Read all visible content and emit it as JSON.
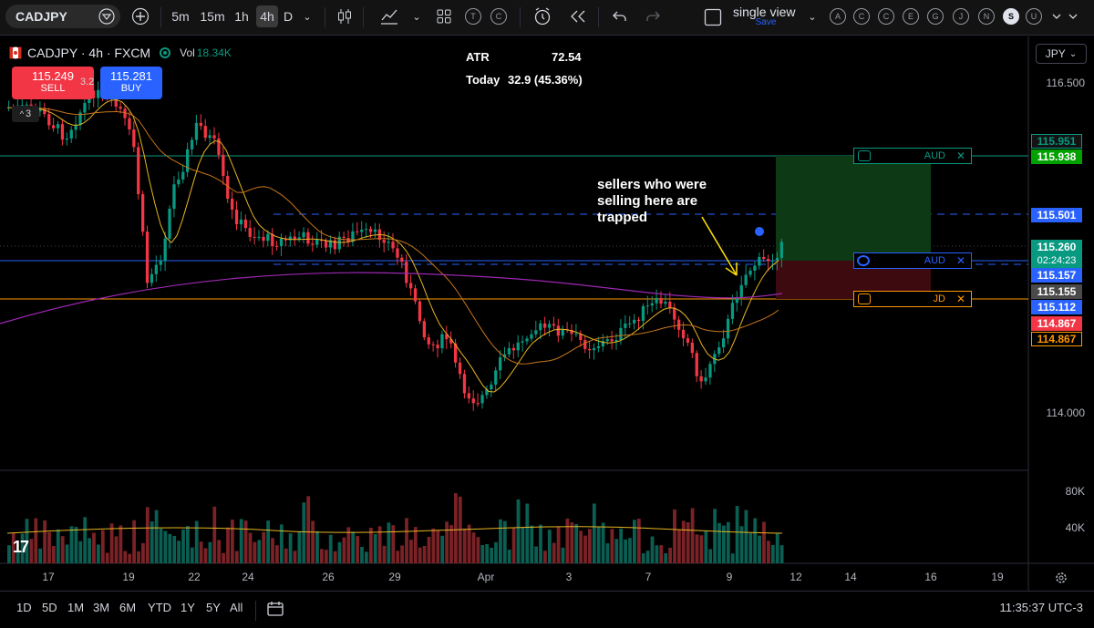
{
  "toolbar": {
    "symbol": "CADJPY",
    "intervals": [
      "5m",
      "15m",
      "1h",
      "4h",
      "D"
    ],
    "active_interval": "4h",
    "layout_name": "single view",
    "layout_save": "Save",
    "letter_buttons": [
      "T",
      "C"
    ],
    "right_circles": [
      "A",
      "C",
      "C",
      "E",
      "G",
      "J",
      "N",
      "S",
      "U"
    ]
  },
  "legend": {
    "title": "CADJPY · 4h · FXCM",
    "vol_label": "Vol",
    "vol_value": "18.34K",
    "sell_price": "115.249",
    "sell_label": "SELL",
    "spread": "3.2",
    "buy_price": "115.281",
    "buy_label": "BUY",
    "collapse_count": "3"
  },
  "atr": {
    "label": "ATR",
    "value": "72.54",
    "today_label": "Today",
    "today_value": "32.9 (45.36%)"
  },
  "annotation": "sellers who were selling here are trapped",
  "currency": "JPY",
  "price_axis": [
    "116.500",
    "114.000"
  ],
  "price_tags": [
    {
      "value": "115.951",
      "bg": "#131313",
      "fg": "#089981",
      "border": "#089981"
    },
    {
      "value": "115.938",
      "bg": "#00a000",
      "fg": "#ffffff",
      "border": "#00a000"
    },
    {
      "value": "115.501",
      "bg": "#2962ff",
      "fg": "#ffffff",
      "border": "#2962ff"
    },
    {
      "value": "115.260",
      "bg": "#089981",
      "fg": "#ffffff",
      "border": "#089981"
    },
    {
      "value": "02:24:23",
      "bg": "#089981",
      "fg": "#ffffff",
      "border": "#089981"
    },
    {
      "value": "115.157",
      "bg": "#2962ff",
      "fg": "#ffffff",
      "border": "#2962ff"
    },
    {
      "value": "115.155",
      "bg": "#4a4a4a",
      "fg": "#ffffff",
      "border": "#4a4a4a"
    },
    {
      "value": "115.112",
      "bg": "#2962ff",
      "fg": "#ffffff",
      "border": "#2962ff"
    },
    {
      "value": "114.867",
      "bg": "#f23645",
      "fg": "#ffffff",
      "border": "#f23645"
    },
    {
      "value": "114.867",
      "bg": "#000000",
      "fg": "#ff9800",
      "border": "#ff9800"
    }
  ],
  "position_bars": [
    {
      "label": "AUD",
      "color": "#089981"
    },
    {
      "label": "AUD",
      "color": "#2962ff"
    },
    {
      "label": "JD",
      "color": "#ff9800"
    }
  ],
  "volume_axis": [
    "80K",
    "40K"
  ],
  "time_axis": [
    "17",
    "19",
    "22",
    "24",
    "26",
    "29",
    "Apr",
    "3",
    "7",
    "9",
    "12",
    "14",
    "16",
    "19"
  ],
  "ranges": [
    "1D",
    "5D",
    "1M",
    "3M",
    "6M",
    "YTD",
    "1Y",
    "5Y",
    "All"
  ],
  "clock": "11:35:37 UTC-3",
  "colors": {
    "up": "#089981",
    "down": "#f23645",
    "ma_fast": "#e6b422",
    "ma_mid": "#c7751b",
    "ma_slow": "#9c27b0"
  }
}
